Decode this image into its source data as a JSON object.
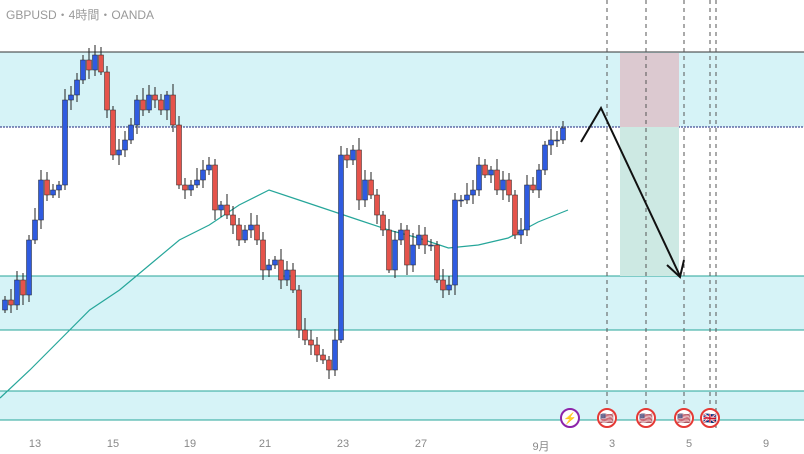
{
  "header": {
    "title": "GBPUSD・4時間・OANDA"
  },
  "colors": {
    "bull": "#2f5be0",
    "bear": "#e5534b",
    "zone": "#d6f3f7",
    "zone_line": "#26a69a",
    "ma": "#26a69a"
  },
  "x_axis": [
    "13",
    "15",
    "19",
    "21",
    "23",
    "27",
    "9月",
    "3",
    "5",
    "9"
  ],
  "events": [
    {
      "icon": "lightning-icon"
    },
    {
      "icon": "us-flag-icon"
    },
    {
      "icon": "us-flag-icon"
    },
    {
      "icon": "us-flag-icon"
    },
    {
      "icon": "uk-flag-icon"
    }
  ],
  "chart_data": {
    "type": "candlestick",
    "first_open": 140,
    "closes": [
      150,
      145,
      170,
      155,
      210,
      230,
      270,
      255,
      260,
      265,
      350,
      355,
      370,
      390,
      380,
      395,
      378,
      340,
      295,
      300,
      310,
      325,
      350,
      340,
      355,
      350,
      340,
      355,
      325,
      265,
      260,
      265,
      270,
      280,
      285,
      240,
      245,
      235,
      225,
      210,
      220,
      225,
      210,
      180,
      185,
      190,
      170,
      180,
      160,
      120,
      110,
      105,
      95,
      90,
      80,
      110,
      295,
      290,
      300,
      250,
      270,
      255,
      235,
      220,
      180,
      210,
      220,
      185,
      205,
      215,
      205,
      205,
      170,
      160,
      165,
      250,
      250,
      255,
      260,
      285,
      275,
      280,
      260,
      270,
      255,
      215,
      220,
      265,
      260,
      280,
      305,
      310,
      310,
      322
    ],
    "ma": [
      52,
      80,
      110,
      140,
      160,
      185,
      210,
      225,
      245,
      260,
      250,
      240,
      230,
      220,
      212,
      202,
      205,
      212,
      228,
      240
    ]
  }
}
